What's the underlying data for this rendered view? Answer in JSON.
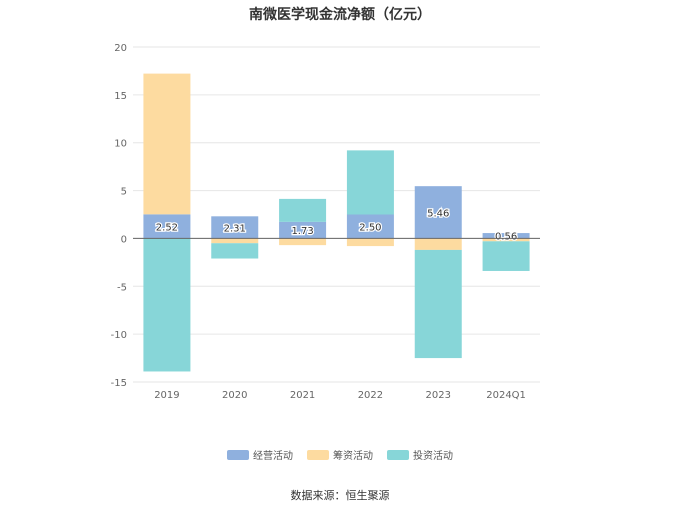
{
  "chart_data": {
    "type": "bar",
    "stacked": true,
    "title": "南微医学现金流净额（亿元）",
    "xlabel": "",
    "ylabel": "",
    "categories": [
      "2019",
      "2020",
      "2021",
      "2022",
      "2023",
      "2024Q1"
    ],
    "ylim": [
      -15,
      20
    ],
    "yticks": [
      20,
      15,
      10,
      5,
      0,
      -5,
      -10,
      -15
    ],
    "grid": true,
    "legend_position": "bottom",
    "series": [
      {
        "name": "经营活动",
        "color": "#8fb0de",
        "values": [
          2.52,
          2.31,
          1.73,
          2.5,
          5.46,
          0.56
        ],
        "labels": [
          "2.52",
          "2.31",
          "1.73",
          "2.50",
          "5.46",
          "0.56"
        ]
      },
      {
        "name": "筹资活动",
        "color": "#fddba0",
        "values": [
          14.7,
          -0.5,
          -0.7,
          -0.8,
          -1.2,
          -0.3
        ]
      },
      {
        "name": "投资活动",
        "color": "#87d6d8",
        "values": [
          -13.9,
          -1.6,
          2.4,
          6.7,
          -11.3,
          -3.1
        ]
      }
    ]
  },
  "footer": {
    "source": "数据来源：恒生聚源"
  }
}
